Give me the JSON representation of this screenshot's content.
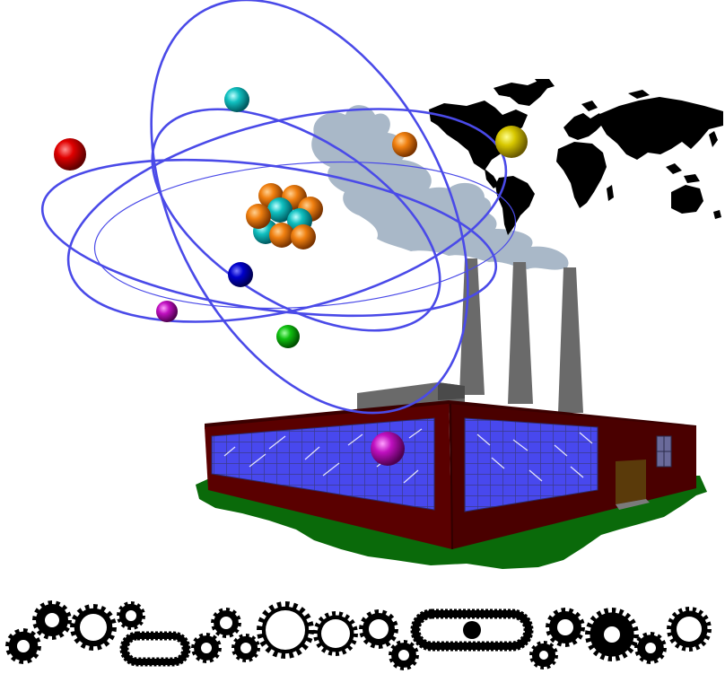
{
  "colors": {
    "orbit": "#4a4ae8",
    "factory_wall": "#5a0000",
    "factory_window": "#4848ee",
    "window_grid": "#3a3a8a",
    "ground": "#0a6a0a",
    "smoke": "#a9b8c8",
    "chimney": "#6a6a6a",
    "world": "#000000",
    "gear": "#000000",
    "door": "#5a3a0a",
    "proton": "#e07a10",
    "neutron": "#12b8c8"
  },
  "icons": {
    "atom": "atom-icon",
    "world_map": "world-map-icon",
    "factory": "factory-icon",
    "gears": "gear-icon"
  },
  "electrons": [
    {
      "name": "electron-red",
      "color": "#e00000"
    },
    {
      "name": "electron-cyan",
      "color": "#10c0c0"
    },
    {
      "name": "electron-orange",
      "color": "#f08010"
    },
    {
      "name": "electron-yellow",
      "color": "#d8c800"
    },
    {
      "name": "electron-blue",
      "color": "#0000cc"
    },
    {
      "name": "electron-magenta",
      "color": "#c010c0"
    },
    {
      "name": "electron-green",
      "color": "#10c010"
    },
    {
      "name": "electron-purple",
      "color": "#c010c0"
    }
  ]
}
